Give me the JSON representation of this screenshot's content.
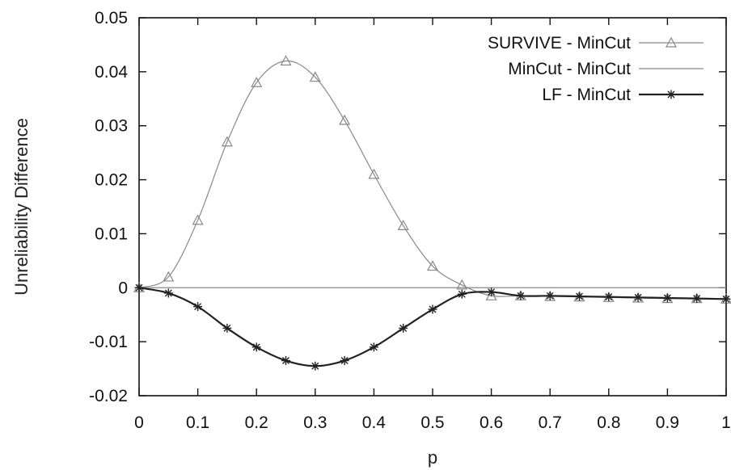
{
  "chart_data": {
    "type": "line",
    "xlabel": "p",
    "ylabel": "Unreliability Difference",
    "xlim": [
      0,
      1
    ],
    "ylim": [
      -0.02,
      0.05
    ],
    "x_ticks": [
      0,
      0.1,
      0.2,
      0.3,
      0.4,
      0.5,
      0.6,
      0.7,
      0.8,
      0.9,
      1
    ],
    "x_tick_labels": [
      "0",
      "0.1",
      "0.2",
      "0.3",
      "0.4",
      "0.5",
      "0.6",
      "0.7",
      "0.8",
      "0.9",
      "1"
    ],
    "y_ticks": [
      -0.02,
      -0.01,
      0,
      0.01,
      0.02,
      0.03,
      0.04,
      0.05
    ],
    "y_tick_labels": [
      "-0.02",
      "-0.01",
      "0",
      "0.01",
      "0.02",
      "0.03",
      "0.04",
      "0.05"
    ],
    "grid": false,
    "legend_position": "top-right",
    "series": [
      {
        "name": "SURVIVE - MinCut",
        "marker": "triangle",
        "color": "#888888",
        "x": [
          0,
          0.05,
          0.1,
          0.15,
          0.2,
          0.25,
          0.3,
          0.35,
          0.4,
          0.45,
          0.5,
          0.55,
          0.6,
          0.65,
          0.7,
          0.75,
          0.8,
          0.85,
          0.9,
          0.95,
          1
        ],
        "y": [
          0,
          0.002,
          0.0125,
          0.027,
          0.038,
          0.042,
          0.039,
          0.031,
          0.021,
          0.0115,
          0.004,
          0.0005,
          -0.0015,
          -0.0015,
          -0.0016,
          -0.0017,
          -0.0018,
          -0.0019,
          -0.002,
          -0.002,
          -0.0021
        ]
      },
      {
        "name": "MinCut - MinCut",
        "marker": "none",
        "color": "#888888",
        "x": [
          0,
          1
        ],
        "y": [
          0,
          0
        ]
      },
      {
        "name": "LF - MinCut",
        "marker": "star",
        "color": "#222222",
        "x": [
          0,
          0.05,
          0.1,
          0.15,
          0.2,
          0.25,
          0.3,
          0.35,
          0.4,
          0.45,
          0.5,
          0.55,
          0.6,
          0.65,
          0.7,
          0.75,
          0.8,
          0.85,
          0.9,
          0.95,
          1
        ],
        "y": [
          0,
          -0.001,
          -0.0035,
          -0.0075,
          -0.011,
          -0.0135,
          -0.0145,
          -0.0135,
          -0.011,
          -0.0075,
          -0.004,
          -0.0012,
          -0.0008,
          -0.0015,
          -0.0015,
          -0.0016,
          -0.0017,
          -0.0018,
          -0.0019,
          -0.002,
          -0.0021
        ]
      }
    ]
  }
}
